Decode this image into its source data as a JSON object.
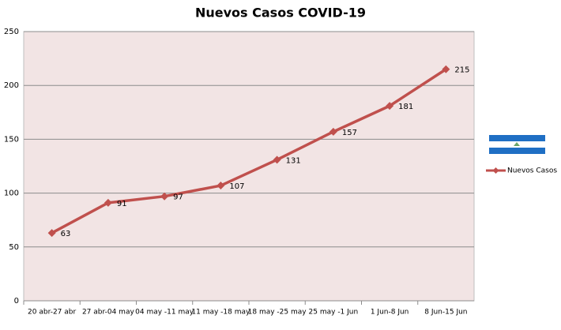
{
  "chart_data": {
    "type": "line",
    "title": "Nuevos Casos COVID-19",
    "categories": [
      "20 abr-27 abr",
      "27 abr-04 may",
      "04 may -11 may",
      "11 may -18 may",
      "18 may -25 may",
      "25 may -1 Jun",
      "1 Jun-8 Jun",
      "8 Jun-15 Jun"
    ],
    "series": [
      {
        "name": "Nuevos Casos",
        "color": "#c0504d",
        "values": [
          63,
          91,
          97,
          107,
          131,
          157,
          181,
          215
        ]
      }
    ],
    "ylim": [
      0,
      250
    ],
    "yticks": [
      0,
      50,
      100,
      150,
      200,
      250
    ],
    "grid": true,
    "legend": "right"
  }
}
